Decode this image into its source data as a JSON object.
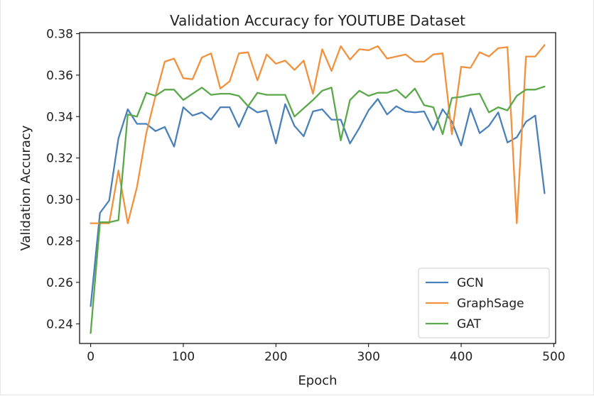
{
  "chart_data": {
    "type": "line",
    "title": "Validation Accuracy for YOUTUBE Dataset",
    "xlabel": "Epoch",
    "ylabel": "Validation Accuracy",
    "xlim": [
      -12,
      502
    ],
    "ylim": [
      0.2305,
      0.3805
    ],
    "xticks": [
      0,
      100,
      200,
      300,
      400,
      500
    ],
    "yticks": [
      0.24,
      0.26,
      0.28,
      0.3,
      0.32,
      0.34,
      0.36,
      0.38
    ],
    "ytick_labels": [
      "0.24",
      "0.26",
      "0.28",
      "0.30",
      "0.32",
      "0.34",
      "0.36",
      "0.38"
    ],
    "grid": false,
    "legend_position": "lower-right",
    "x": [
      0,
      10,
      20,
      30,
      40,
      50,
      60,
      70,
      80,
      90,
      100,
      110,
      120,
      130,
      140,
      150,
      160,
      170,
      180,
      190,
      200,
      210,
      220,
      230,
      240,
      250,
      260,
      270,
      280,
      290,
      300,
      310,
      320,
      330,
      340,
      350,
      360,
      370,
      380,
      390,
      400,
      410,
      420,
      430,
      440,
      450,
      460,
      470,
      480,
      490
    ],
    "series": [
      {
        "name": "GCN",
        "color": "#4a80b9",
        "values": [
          0.2485,
          0.2935,
          0.2995,
          0.3295,
          0.3435,
          0.3365,
          0.3365,
          0.333,
          0.335,
          0.3255,
          0.3445,
          0.3405,
          0.342,
          0.3385,
          0.3445,
          0.3445,
          0.335,
          0.345,
          0.342,
          0.343,
          0.327,
          0.346,
          0.3355,
          0.3305,
          0.3425,
          0.3435,
          0.3385,
          0.3385,
          0.327,
          0.3345,
          0.343,
          0.3485,
          0.341,
          0.345,
          0.3425,
          0.342,
          0.3425,
          0.3335,
          0.3435,
          0.3375,
          0.326,
          0.344,
          0.332,
          0.3355,
          0.342,
          0.3275,
          0.33,
          0.3375,
          0.3405,
          0.303
        ]
      },
      {
        "name": "GraphSage",
        "color": "#f2913d",
        "values": [
          0.2885,
          0.2885,
          0.2885,
          0.314,
          0.2885,
          0.306,
          0.332,
          0.35,
          0.3665,
          0.368,
          0.3585,
          0.358,
          0.3685,
          0.3705,
          0.3535,
          0.357,
          0.3705,
          0.371,
          0.3575,
          0.37,
          0.3655,
          0.367,
          0.3625,
          0.367,
          0.351,
          0.3725,
          0.362,
          0.374,
          0.3675,
          0.3725,
          0.372,
          0.374,
          0.368,
          0.369,
          0.37,
          0.3665,
          0.3665,
          0.37,
          0.3705,
          0.3315,
          0.364,
          0.3635,
          0.371,
          0.369,
          0.373,
          0.3735,
          0.2885,
          0.369,
          0.369,
          0.3745
        ]
      },
      {
        "name": "GAT",
        "color": "#5aa84a",
        "values": [
          0.2355,
          0.289,
          0.289,
          0.29,
          0.341,
          0.34,
          0.3515,
          0.35,
          0.353,
          0.353,
          0.348,
          0.351,
          0.354,
          0.3505,
          0.351,
          0.351,
          0.35,
          0.345,
          0.3515,
          0.3505,
          0.3505,
          0.3505,
          0.34,
          0.344,
          0.348,
          0.3525,
          0.354,
          0.3285,
          0.348,
          0.3525,
          0.35,
          0.3515,
          0.3515,
          0.353,
          0.349,
          0.3535,
          0.3455,
          0.3445,
          0.3315,
          0.349,
          0.3495,
          0.3505,
          0.351,
          0.342,
          0.3445,
          0.343,
          0.35,
          0.353,
          0.353,
          0.3545
        ]
      }
    ]
  }
}
